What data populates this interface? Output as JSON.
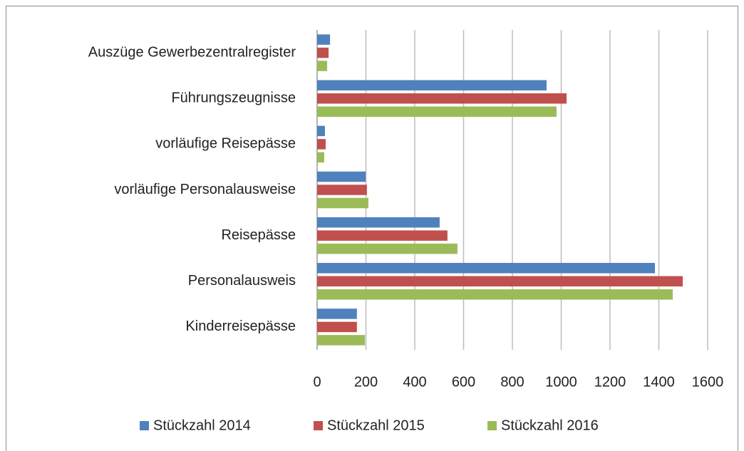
{
  "chart_data": {
    "type": "bar",
    "orientation": "horizontal",
    "categories": [
      "Auszüge Gewerbezentralregister",
      "Führungszeugnisse",
      "vorläufige Reisepässe",
      "vorläufige Personalausweise",
      "Reisepässe",
      "Personalausweis",
      "Kinderreisepässe"
    ],
    "series": [
      {
        "name": "Stückzahl 2014",
        "color": "#4f81bd",
        "values": [
          53,
          940,
          32,
          199,
          502,
          1384,
          163
        ]
      },
      {
        "name": "Stückzahl 2015",
        "color": "#c0504d",
        "values": [
          47,
          1022,
          35,
          204,
          534,
          1498,
          163
        ]
      },
      {
        "name": "Stückzahl 2016",
        "color": "#9bbb59",
        "values": [
          41,
          981,
          29,
          210,
          575,
          1457,
          196
        ]
      }
    ],
    "xlim": [
      0,
      1600
    ],
    "xticks": [
      0,
      200,
      400,
      600,
      800,
      1000,
      1200,
      1400,
      1600
    ],
    "grid": true,
    "legend": "bottom"
  }
}
